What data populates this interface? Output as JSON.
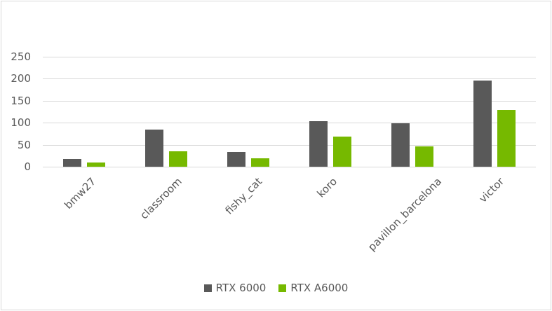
{
  "chart_data": {
    "type": "bar",
    "title": "",
    "xlabel": "",
    "ylabel": "",
    "ylim": [
      0,
      250
    ],
    "yticks": [
      0,
      50,
      100,
      150,
      200,
      250
    ],
    "grid": true,
    "legend_position": "bottom",
    "categories": [
      "bmw27",
      "classroom",
      "fishy_cat",
      "koro",
      "pavillon_barcelona",
      "victor"
    ],
    "series": [
      {
        "name": "RTX 6000",
        "color": "#595959",
        "values": [
          17,
          84,
          33,
          103,
          98,
          196
        ]
      },
      {
        "name": "RTX A6000",
        "color": "#76b900",
        "values": [
          9,
          35,
          19,
          68,
          46,
          129
        ]
      }
    ]
  },
  "legend": {
    "items": [
      {
        "label": "RTX 6000",
        "color": "#595959"
      },
      {
        "label": "RTX A6000",
        "color": "#76b900"
      }
    ]
  }
}
